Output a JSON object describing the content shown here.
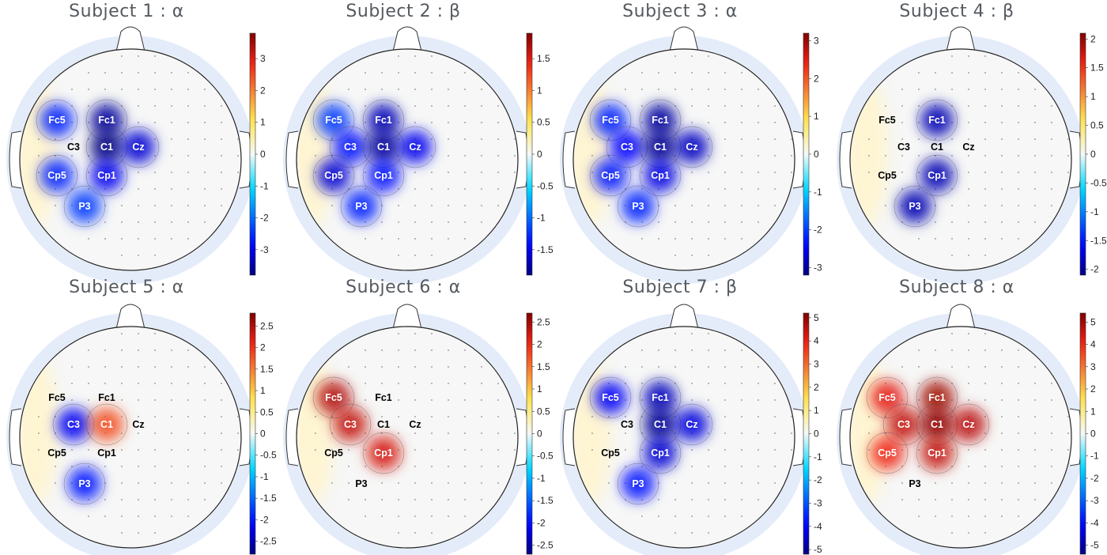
{
  "chart_data": [
    {
      "type": "heatmap",
      "title": "Subject 1 : α",
      "colorbar_ticks": [
        "3",
        "2",
        "1",
        "0",
        "-1",
        "-2",
        "-3"
      ],
      "clim": [
        -3.8,
        3.8
      ],
      "electrodes": [
        "Fc5",
        "Fc1",
        "C3",
        "C1",
        "Cz",
        "Cp5",
        "Cp1",
        "P3"
      ],
      "values": {
        "Fc5": -2.6,
        "Fc1": -3.6,
        "C3": 0,
        "C1": -3.8,
        "Cz": -3.2,
        "Cp5": -2.6,
        "Cp1": -3.0,
        "P3": -2.4
      }
    },
    {
      "type": "heatmap",
      "title": "Subject 2 : β",
      "colorbar_ticks": [
        "1.5",
        "1",
        "0.5",
        "0",
        "-0.5",
        "-1",
        "-1.5"
      ],
      "clim": [
        -1.9,
        1.9
      ],
      "electrodes": [
        "Fc5",
        "Fc1",
        "C3",
        "C1",
        "Cz",
        "Cp5",
        "Cp1",
        "P3"
      ],
      "values": {
        "Fc5": -1.2,
        "Fc1": -1.7,
        "C3": -1.4,
        "C1": -1.8,
        "Cz": -1.5,
        "Cp5": -1.6,
        "Cp1": -1.4,
        "P3": -1.3
      }
    },
    {
      "type": "heatmap",
      "title": "Subject 3 : α",
      "colorbar_ticks": [
        "3",
        "2",
        "1",
        "0",
        "-1",
        "-2",
        "-3"
      ],
      "clim": [
        -3.2,
        3.2
      ],
      "electrodes": [
        "Fc5",
        "Fc1",
        "C3",
        "C1",
        "Cz",
        "Cp5",
        "Cp1",
        "P3"
      ],
      "values": {
        "Fc5": -2.2,
        "Fc1": -3.0,
        "C3": -2.4,
        "C1": -3.1,
        "Cz": -2.8,
        "Cp5": -2.3,
        "Cp1": -2.6,
        "P3": -2.2
      }
    },
    {
      "type": "heatmap",
      "title": "Subject 4 : β",
      "colorbar_ticks": [
        "2",
        "1.5",
        "1",
        "0.5",
        "0",
        "-0.5",
        "-1",
        "-1.5",
        "-2"
      ],
      "clim": [
        -2.1,
        2.1
      ],
      "electrodes": [
        "Fc5",
        "Fc1",
        "C3",
        "C1",
        "Cz",
        "Cp5",
        "Cp1",
        "P3"
      ],
      "values": {
        "Fc5": 0,
        "Fc1": -1.9,
        "C3": 0,
        "C1": 0,
        "Cz": 0,
        "Cp5": 0,
        "Cp1": -1.9,
        "P3": -1.9
      }
    },
    {
      "type": "heatmap",
      "title": "Subject 5 : α",
      "colorbar_ticks": [
        "2.5",
        "2",
        "1.5",
        "1",
        "0.5",
        "0",
        "-0.5",
        "-1",
        "-1.5",
        "-2",
        "-2.5"
      ],
      "clim": [
        -2.8,
        2.8
      ],
      "electrodes": [
        "Fc5",
        "Fc1",
        "C3",
        "C1",
        "Cz",
        "Cp5",
        "Cp1",
        "P3"
      ],
      "values": {
        "Fc5": 0,
        "Fc1": 0,
        "C3": -2.2,
        "C1": 1.8,
        "Cz": 0,
        "Cp5": 0,
        "Cp1": 0,
        "P3": -2.0
      }
    },
    {
      "type": "heatmap",
      "title": "Subject 6 : α",
      "colorbar_ticks": [
        "2.5",
        "2",
        "1.5",
        "1",
        "0.5",
        "0",
        "-0.5",
        "-1",
        "-1.5",
        "-2",
        "-2.5"
      ],
      "clim": [
        -2.7,
        2.7
      ],
      "electrodes": [
        "Fc5",
        "Fc1",
        "C3",
        "C1",
        "Cz",
        "Cp5",
        "Cp1",
        "P3"
      ],
      "values": {
        "Fc5": 2.4,
        "Fc1": 0,
        "C3": 2.3,
        "C1": 0,
        "Cz": 0,
        "Cp5": 0,
        "Cp1": 2.2,
        "P3": 0
      }
    },
    {
      "type": "heatmap",
      "title": "Subject 7 : β",
      "colorbar_ticks": [
        "5",
        "4",
        "3",
        "2",
        "1",
        "0",
        "-1",
        "-2",
        "-3",
        "-4",
        "-5"
      ],
      "clim": [
        -5.2,
        5.2
      ],
      "electrodes": [
        "Fc5",
        "Fc1",
        "C3",
        "C1",
        "Cz",
        "Cp5",
        "Cp1",
        "P3"
      ],
      "values": {
        "Fc5": -4.0,
        "Fc1": -4.6,
        "C3": 0,
        "C1": -5.0,
        "Cz": -4.3,
        "Cp5": 0,
        "Cp1": -4.4,
        "P3": -3.8
      }
    },
    {
      "type": "heatmap",
      "title": "Subject 8 : α",
      "colorbar_ticks": [
        "5",
        "4",
        "3",
        "2",
        "1",
        "0",
        "-1",
        "-2",
        "-3",
        "-4",
        "-5"
      ],
      "clim": [
        -5.4,
        5.4
      ],
      "electrodes": [
        "Fc5",
        "Fc1",
        "C3",
        "C1",
        "Cz",
        "Cp5",
        "Cp1",
        "P3"
      ],
      "values": {
        "Fc5": 4.2,
        "Fc1": 5.0,
        "C3": 4.6,
        "C1": 5.2,
        "Cz": 4.7,
        "Cp5": 4.0,
        "Cp1": 4.6,
        "P3": 0
      }
    }
  ]
}
